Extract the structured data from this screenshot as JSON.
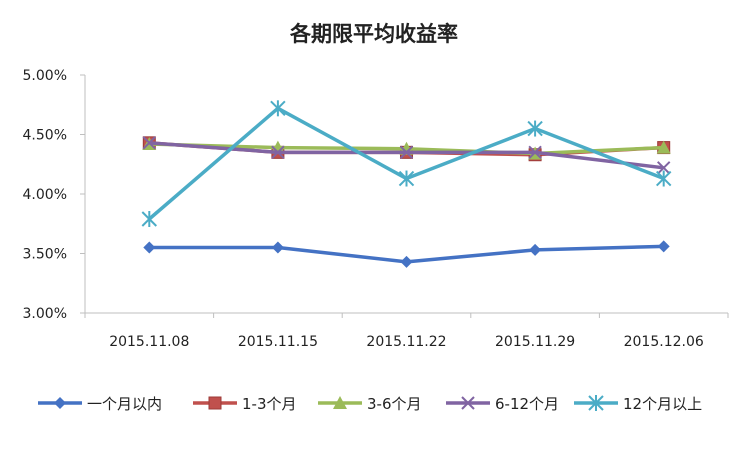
{
  "chart_data": {
    "type": "line",
    "title": "各期限平均收益率",
    "xlabel": "",
    "ylabel": "",
    "categories": [
      "2015.11.08",
      "2015.11.15",
      "2015.11.22",
      "2015.11.29",
      "2015.12.06"
    ],
    "ylim": [
      3.0,
      5.0
    ],
    "yticks": [
      "3.00%",
      "3.50%",
      "4.00%",
      "4.50%",
      "5.00%"
    ],
    "grid": false,
    "legend": "bottom",
    "series": [
      {
        "name": "一个月以内",
        "color": "#4472C4",
        "marker": "diamond",
        "values": [
          3.55,
          3.55,
          3.43,
          3.53,
          3.56
        ]
      },
      {
        "name": "1-3个月",
        "color": "#C0504D",
        "marker": "square",
        "values": [
          4.43,
          4.35,
          4.35,
          4.33,
          4.39
        ]
      },
      {
        "name": "3-6个月",
        "color": "#9BBB59",
        "marker": "triangle",
        "values": [
          4.42,
          4.39,
          4.38,
          4.34,
          4.39
        ]
      },
      {
        "name": "6-12个月",
        "color": "#8064A2",
        "marker": "x",
        "values": [
          4.43,
          4.35,
          4.35,
          4.35,
          4.22
        ]
      },
      {
        "name": "12个月以上",
        "color": "#4BACC6",
        "marker": "star",
        "values": [
          3.79,
          4.72,
          4.13,
          4.55,
          4.13
        ]
      }
    ]
  }
}
